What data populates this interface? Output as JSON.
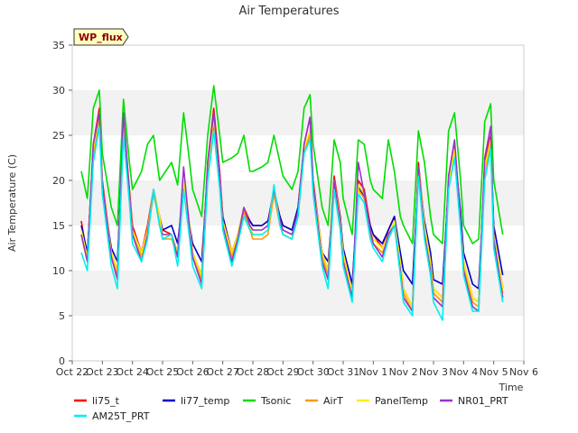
{
  "chart_data": {
    "type": "line",
    "title": "Air Temperatures",
    "xlabel": "Time",
    "ylabel": "Air Temperature (C)",
    "badge": "WP_flux",
    "ylim": [
      0,
      35
    ],
    "yticks": [
      0,
      5,
      10,
      15,
      20,
      25,
      30,
      35
    ],
    "xlim": [
      0,
      15
    ],
    "xtick_labels": [
      "Oct 22",
      "Oct 23",
      "Oct 24",
      "Oct 25",
      "Oct 26",
      "Oct 27",
      "Oct 28",
      "Oct 29",
      "Oct 30",
      "Oct 31",
      "Nov 1",
      "Nov 2",
      "Nov 3",
      "Nov 4",
      "Nov 5",
      "Nov 6"
    ],
    "grid": "horizontal bands",
    "legend_position": "bottom",
    "x_days": [
      0.3,
      0.5,
      0.7,
      0.9,
      1.0,
      1.3,
      1.5,
      1.7,
      1.9,
      2.0,
      2.3,
      2.5,
      2.7,
      2.9,
      3.0,
      3.3,
      3.5,
      3.7,
      3.9,
      4.0,
      4.3,
      4.5,
      4.7,
      4.9,
      5.0,
      5.3,
      5.5,
      5.7,
      5.9,
      6.0,
      6.3,
      6.5,
      6.7,
      6.9,
      7.0,
      7.3,
      7.5,
      7.7,
      7.9,
      8.0,
      8.3,
      8.5,
      8.7,
      8.9,
      9.0,
      9.3,
      9.5,
      9.7,
      9.9,
      10.0,
      10.3,
      10.5,
      10.7,
      10.9,
      11.0,
      11.3,
      11.5,
      11.7,
      11.9,
      12.0,
      12.3,
      12.5,
      12.7,
      12.9,
      13.0,
      13.3,
      13.5,
      13.7,
      13.9,
      14.0,
      14.3
    ],
    "series": [
      {
        "name": "li75_t",
        "color": "#ff0000",
        "values": [
          15.5,
          11.5,
          24.0,
          28.0,
          20.0,
          12.0,
          10.0,
          27.0,
          19.0,
          15.0,
          12.0,
          15.0,
          19.0,
          16.0,
          14.5,
          14.0,
          12.0,
          20.0,
          15.0,
          12.0,
          9.5,
          22.0,
          28.0,
          21.0,
          16.0,
          12.0,
          14.0,
          17.0,
          15.5,
          15.0,
          15.0,
          15.5,
          19.0,
          16.0,
          15.0,
          14.5,
          17.0,
          24.0,
          27.0,
          20.0,
          12.0,
          10.0,
          20.5,
          16.0,
          12.0,
          7.5,
          20.0,
          19.0,
          15.0,
          14.0,
          12.5,
          14.5,
          16.0,
          11.0,
          8.0,
          6.0,
          22.0,
          15.0,
          11.0,
          8.0,
          7.0,
          20.0,
          24.0,
          16.0,
          11.0,
          7.0,
          6.5,
          22.0,
          25.0,
          14.0,
          8.0
        ]
      },
      {
        "name": "li77_temp",
        "color": "#0000cc",
        "values": [
          15.0,
          12.0,
          23.0,
          27.0,
          19.0,
          12.5,
          11.0,
          26.0,
          18.0,
          14.5,
          12.0,
          14.5,
          18.5,
          16.0,
          14.5,
          15.0,
          13.0,
          19.0,
          15.0,
          13.0,
          11.0,
          21.0,
          26.0,
          20.0,
          16.0,
          12.0,
          14.0,
          16.5,
          15.5,
          15.0,
          15.0,
          15.5,
          18.5,
          16.0,
          15.0,
          14.5,
          17.0,
          23.0,
          25.5,
          19.5,
          12.0,
          11.0,
          19.0,
          16.0,
          12.5,
          8.5,
          19.5,
          18.0,
          15.0,
          14.0,
          13.0,
          14.5,
          16.0,
          12.0,
          10.0,
          8.5,
          21.0,
          15.5,
          12.0,
          9.0,
          8.5,
          19.5,
          23.0,
          16.5,
          12.0,
          8.5,
          8.0,
          21.0,
          24.0,
          15.0,
          9.5
        ]
      },
      {
        "name": "Tsonic",
        "color": "#00dd00",
        "values": [
          21.0,
          18.0,
          28.0,
          30.0,
          23.0,
          17.0,
          15.0,
          29.0,
          22.0,
          19.0,
          21.0,
          24.0,
          25.0,
          20.0,
          20.5,
          22.0,
          19.5,
          27.5,
          22.0,
          19.0,
          16.0,
          25.0,
          30.5,
          25.0,
          22.0,
          22.5,
          23.0,
          25.0,
          21.0,
          21.0,
          21.5,
          22.0,
          25.0,
          22.0,
          20.5,
          19.0,
          21.0,
          28.0,
          29.5,
          24.0,
          17.0,
          15.0,
          24.5,
          22.0,
          18.0,
          14.0,
          24.5,
          24.0,
          20.0,
          19.0,
          18.0,
          24.5,
          21.0,
          16.0,
          15.0,
          13.0,
          25.5,
          22.0,
          16.0,
          14.0,
          13.0,
          25.5,
          27.5,
          20.0,
          15.0,
          13.0,
          13.5,
          26.5,
          28.5,
          20.0,
          14.0
        ]
      },
      {
        "name": "AirT",
        "color": "#ff9900",
        "values": [
          14.0,
          11.0,
          23.0,
          27.0,
          19.0,
          11.5,
          9.5,
          25.5,
          18.0,
          14.0,
          11.5,
          14.0,
          18.5,
          15.5,
          13.5,
          13.5,
          11.5,
          19.5,
          14.5,
          11.5,
          9.0,
          21.0,
          26.5,
          20.0,
          15.0,
          11.5,
          13.5,
          16.5,
          14.5,
          13.5,
          13.5,
          14.0,
          18.5,
          15.0,
          14.0,
          13.5,
          16.0,
          23.0,
          25.0,
          19.0,
          11.5,
          9.5,
          19.5,
          15.0,
          11.5,
          7.0,
          19.0,
          18.0,
          14.0,
          13.0,
          12.0,
          13.5,
          15.0,
          10.5,
          7.5,
          5.5,
          21.0,
          14.5,
          10.5,
          7.5,
          6.5,
          19.0,
          23.0,
          15.0,
          10.5,
          6.5,
          6.0,
          21.0,
          24.0,
          13.5,
          7.5
        ]
      },
      {
        "name": "PanelTemp",
        "color": "#ffee00",
        "values": [
          14.5,
          11.5,
          23.5,
          27.5,
          19.5,
          12.0,
          10.0,
          26.0,
          18.5,
          14.5,
          12.0,
          14.5,
          19.0,
          16.0,
          14.0,
          14.0,
          12.0,
          20.0,
          15.0,
          12.0,
          9.5,
          21.5,
          27.0,
          20.5,
          15.5,
          12.0,
          14.0,
          17.0,
          15.0,
          14.0,
          14.0,
          14.5,
          19.0,
          15.5,
          14.5,
          14.0,
          16.5,
          23.5,
          25.5,
          19.5,
          12.0,
          10.0,
          20.0,
          15.5,
          12.0,
          7.5,
          19.5,
          18.5,
          14.5,
          13.5,
          12.5,
          14.0,
          15.5,
          11.0,
          8.0,
          6.0,
          21.5,
          15.0,
          11.0,
          8.0,
          7.0,
          19.5,
          23.5,
          15.5,
          11.0,
          7.0,
          6.5,
          21.5,
          24.5,
          14.0,
          8.0
        ]
      },
      {
        "name": "NR01_PRT",
        "color": "#9933cc",
        "values": [
          14.0,
          11.0,
          24.0,
          27.5,
          19.5,
          11.5,
          9.0,
          27.5,
          18.5,
          14.0,
          11.0,
          14.0,
          19.0,
          15.0,
          14.0,
          14.0,
          11.5,
          21.5,
          14.5,
          11.5,
          8.5,
          22.0,
          27.5,
          20.5,
          15.0,
          11.0,
          13.5,
          17.0,
          15.0,
          14.5,
          14.5,
          15.0,
          19.0,
          15.5,
          14.5,
          14.0,
          16.5,
          24.0,
          27.0,
          19.5,
          11.0,
          9.0,
          20.0,
          15.0,
          11.0,
          7.0,
          22.0,
          18.5,
          14.5,
          13.0,
          11.5,
          14.0,
          15.0,
          10.0,
          7.0,
          5.5,
          21.5,
          14.0,
          10.0,
          7.0,
          6.0,
          20.5,
          24.5,
          15.5,
          10.0,
          6.0,
          5.5,
          22.5,
          26.0,
          13.5,
          7.0
        ]
      },
      {
        "name": "AM25T_PRT",
        "color": "#00eeee",
        "values": [
          12.0,
          10.0,
          22.0,
          26.0,
          18.5,
          10.5,
          8.0,
          25.0,
          17.5,
          13.0,
          11.0,
          13.5,
          19.0,
          15.0,
          13.5,
          14.0,
          10.5,
          19.0,
          13.5,
          10.5,
          8.0,
          20.0,
          25.5,
          19.0,
          14.5,
          10.5,
          13.0,
          16.0,
          14.5,
          14.0,
          14.0,
          14.5,
          19.5,
          15.0,
          14.0,
          13.5,
          16.0,
          23.0,
          24.5,
          18.5,
          10.5,
          8.0,
          19.0,
          14.5,
          10.5,
          6.5,
          18.5,
          17.5,
          13.5,
          12.5,
          11.0,
          13.5,
          15.0,
          9.5,
          6.5,
          5.0,
          20.5,
          13.5,
          9.5,
          6.5,
          4.5,
          19.0,
          22.5,
          14.5,
          9.5,
          5.5,
          5.5,
          20.0,
          23.5,
          12.5,
          6.5
        ]
      }
    ]
  }
}
